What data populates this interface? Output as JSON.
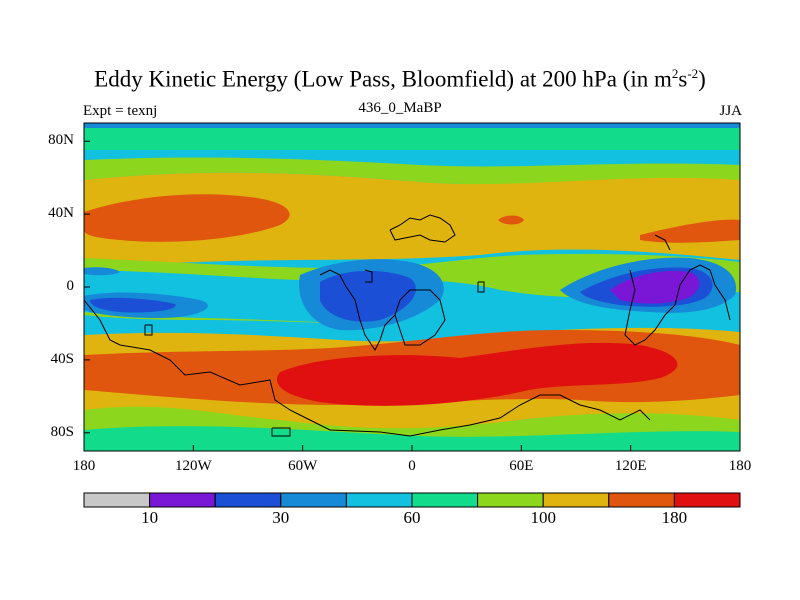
{
  "title": {
    "main": "Eddy Kinetic Energy (Low Pass, Bloomfield) at 200 hPa (in m",
    "sup1": "2",
    "mid": "s",
    "sup2": "-2",
    "end": ")"
  },
  "subtitle_left": "Expt = texnj",
  "subtitle_center": "436_0_MaBP",
  "subtitle_right": "JJA",
  "map": {
    "projection": "cylindrical-equidistant",
    "lon_range": [
      -180,
      180
    ],
    "lat_range": [
      -90,
      90
    ],
    "lat_ticks": [
      {
        "lat": 80,
        "label": "80N"
      },
      {
        "lat": 40,
        "label": "40N"
      },
      {
        "lat": 0,
        "label": "0"
      },
      {
        "lat": -40,
        "label": "40S"
      },
      {
        "lat": -80,
        "label": "80S"
      }
    ],
    "lon_ticks": [
      {
        "lon": -180,
        "label": "180"
      },
      {
        "lon": -120,
        "label": "120W"
      },
      {
        "lon": -60,
        "label": "60W"
      },
      {
        "lon": 0,
        "label": "0"
      },
      {
        "lon": 60,
        "label": "60E"
      },
      {
        "lon": 120,
        "label": "120E"
      },
      {
        "lon": 180,
        "label": "180"
      }
    ]
  },
  "colorbar": {
    "levels": [
      10,
      20,
      30,
      40,
      60,
      80,
      100,
      140,
      180
    ],
    "colors": [
      "#c8c8c8",
      "#7a16d6",
      "#1a4fd6",
      "#168ad6",
      "#12c0e0",
      "#12dc8c",
      "#8cd61e",
      "#e0b40e",
      "#e0560e",
      "#e01010"
    ],
    "tick_labels": [
      {
        "index": 1,
        "label": "10"
      },
      {
        "index": 3,
        "label": "30"
      },
      {
        "index": 5,
        "label": "60"
      },
      {
        "index": 7,
        "label": "100"
      },
      {
        "index": 9,
        "label": "180"
      }
    ]
  },
  "colors": {
    "background": "#12c0e0",
    "outline": "#000000"
  }
}
